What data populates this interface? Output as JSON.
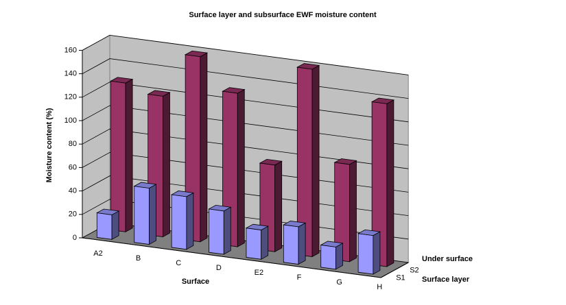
{
  "chart_data": {
    "type": "bar3d",
    "title": "Surface layer and subsurface EWF moisture content",
    "x_label": "Surface",
    "y_label": "Moisture content (%)",
    "categories": [
      "A2",
      "B",
      "C",
      "D",
      "E2",
      "F",
      "G",
      "H"
    ],
    "depth_labels": [
      "S1",
      "S2"
    ],
    "series": [
      {
        "name": "Surface layer",
        "color": "#9999ff",
        "values": [
          21,
          48,
          45,
          37,
          25,
          32,
          19,
          33
        ]
      },
      {
        "name": "Under surface",
        "color": "#993366",
        "values": [
          127,
          120,
          158,
          131,
          74,
          160,
          83,
          139
        ]
      }
    ],
    "ylim": [
      0,
      160
    ],
    "yticks": [
      0,
      20,
      40,
      60,
      80,
      100,
      120,
      140,
      160
    ],
    "grid": true
  }
}
